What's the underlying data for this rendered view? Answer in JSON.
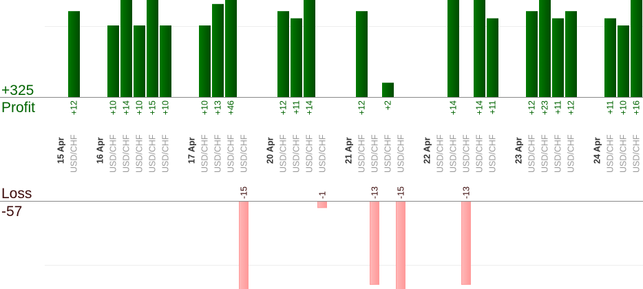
{
  "chart_data": {
    "type": "bar",
    "profit": {
      "label": "Profit",
      "total": "+325",
      "color": "#006400"
    },
    "loss": {
      "label": "Loss",
      "total": "-57",
      "color": "#3b0a0a",
      "bar_color": "#ffaaaa"
    },
    "groups": [
      {
        "date": "15 Apr",
        "trades": [
          {
            "symbol": "USD/CHF",
            "profit": 12
          }
        ]
      },
      {
        "date": "16 Apr",
        "trades": [
          {
            "symbol": "USD/CHF",
            "profit": 10
          },
          {
            "symbol": "USD/CHF",
            "profit": 14
          },
          {
            "symbol": "USD/CHF",
            "profit": 10
          },
          {
            "symbol": "USD/CHF",
            "profit": 15
          },
          {
            "symbol": "USD/CHF",
            "profit": 10
          }
        ]
      },
      {
        "date": "17 Apr",
        "trades": [
          {
            "symbol": "USD/CHF",
            "profit": 10
          },
          {
            "symbol": "USD/CHF",
            "profit": 13
          },
          {
            "symbol": "USD/CHF",
            "profit": 46
          },
          {
            "symbol": "USD/CHF",
            "profit": -15
          }
        ]
      },
      {
        "date": "20 Apr",
        "trades": [
          {
            "symbol": "USD/CHF",
            "profit": 12
          },
          {
            "symbol": "USD/CHF",
            "profit": 11
          },
          {
            "symbol": "USD/CHF",
            "profit": 14
          },
          {
            "symbol": "USD/CHF",
            "profit": -1
          }
        ]
      },
      {
        "date": "21 Apr",
        "trades": [
          {
            "symbol": "USD/CHF",
            "profit": 12
          },
          {
            "symbol": "USD/CHF",
            "profit": -13
          },
          {
            "symbol": "USD/CHF",
            "profit": 2
          },
          {
            "symbol": "USD/CHF",
            "profit": -15
          }
        ]
      },
      {
        "date": "22 Apr",
        "trades": [
          {
            "symbol": "USD/CHF",
            "profit": null
          },
          {
            "symbol": "USD/CHF",
            "profit": 14
          },
          {
            "symbol": "USD/CHF",
            "profit": -13
          },
          {
            "symbol": "USD/CHF",
            "profit": 14
          },
          {
            "symbol": "USD/CHF",
            "profit": 11
          }
        ]
      },
      {
        "date": "23 Apr",
        "trades": [
          {
            "symbol": "USD/CHF",
            "profit": 12
          },
          {
            "symbol": "USD/CHF",
            "profit": 23
          },
          {
            "symbol": "USD/CHF",
            "profit": 11
          },
          {
            "symbol": "USD/CHF",
            "profit": 12
          }
        ]
      },
      {
        "date": "24 Apr",
        "trades": [
          {
            "symbol": "USD/CHF",
            "profit": 11
          },
          {
            "symbol": "USD/CHF",
            "profit": 10
          },
          {
            "symbol": "USD/CHF",
            "profit": 16
          }
        ]
      }
    ],
    "grid": true
  }
}
